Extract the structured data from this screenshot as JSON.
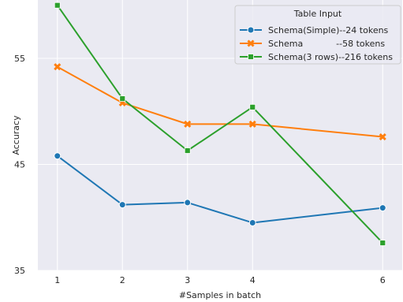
{
  "chart_data": {
    "type": "line",
    "xlabel": "#Samples in batch",
    "ylabel": "Accuracy",
    "x": [
      1,
      2,
      3,
      4,
      6
    ],
    "xticks": [
      "1",
      "2",
      "3",
      "4",
      "6"
    ],
    "xlim": [
      0.7,
      6.3
    ],
    "yticks": [
      "35",
      "45",
      "55"
    ],
    "ytick_values": [
      35,
      45,
      55
    ],
    "ylim": [
      35,
      60.5
    ],
    "grid": true,
    "background": "#eaeaf2",
    "legend": {
      "title": "Table Input",
      "placement": "top-right",
      "labels": [
        "Schema(Simple)--24 tokens",
        "Schema            --58 tokens",
        "Schema(3 rows)--216 tokens"
      ]
    },
    "series": [
      {
        "name": "Schema(Simple)--24 tokens",
        "values": [
          45.8,
          41.2,
          41.4,
          39.5,
          40.9
        ],
        "color": "#1f77b4",
        "marker": "circle"
      },
      {
        "name": "Schema            --58 tokens",
        "values": [
          54.2,
          50.8,
          48.8,
          48.8,
          47.6
        ],
        "color": "#ff7f0e",
        "marker": "x"
      },
      {
        "name": "Schema(3 rows)--216 tokens",
        "values": [
          60.0,
          51.2,
          46.3,
          50.4,
          37.6
        ],
        "color": "#2ca02c",
        "marker": "square"
      }
    ]
  }
}
